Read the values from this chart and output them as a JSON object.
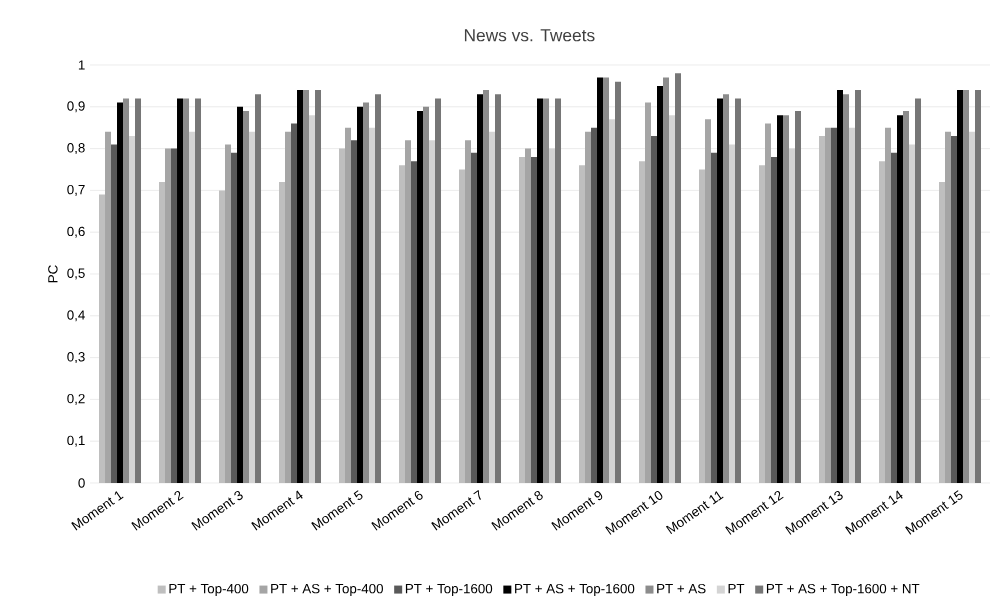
{
  "chart_data": {
    "type": "bar",
    "title": "News vs. Tweets",
    "ylabel": "PC",
    "categories": [
      "Moment 1",
      "Moment 2",
      "Moment 3",
      "Moment 4",
      "Moment 5",
      "Moment 6",
      "Moment 7",
      "Moment 8",
      "Moment 9",
      "Moment 10",
      "Moment 11",
      "Moment 12",
      "Moment 13",
      "Moment 14",
      "Moment 15"
    ],
    "series": [
      {
        "name": "PT + Top-400",
        "color": "#bfbfbf",
        "values": [
          0.69,
          0.72,
          0.7,
          0.72,
          0.8,
          0.76,
          0.75,
          0.78,
          0.76,
          0.77,
          0.75,
          0.76,
          0.83,
          0.77,
          0.72
        ]
      },
      {
        "name": "PT + AS + Top-400",
        "color": "#a5a5a5",
        "values": [
          0.84,
          0.8,
          0.81,
          0.84,
          0.85,
          0.82,
          0.82,
          0.8,
          0.84,
          0.91,
          0.87,
          0.86,
          0.85,
          0.85,
          0.84
        ]
      },
      {
        "name": "PT + Top-1600",
        "color": "#595959",
        "values": [
          0.81,
          0.8,
          0.79,
          0.86,
          0.82,
          0.77,
          0.79,
          0.78,
          0.85,
          0.83,
          0.79,
          0.78,
          0.85,
          0.79,
          0.83
        ]
      },
      {
        "name": "PT + AS + Top-1600",
        "color": "#000000",
        "values": [
          0.91,
          0.92,
          0.9,
          0.94,
          0.9,
          0.89,
          0.93,
          0.92,
          0.97,
          0.95,
          0.92,
          0.88,
          0.94,
          0.88,
          0.94
        ]
      },
      {
        "name": "PT + AS",
        "color": "#8c8c8c",
        "values": [
          0.92,
          0.92,
          0.89,
          0.94,
          0.91,
          0.9,
          0.94,
          0.92,
          0.97,
          0.97,
          0.93,
          0.88,
          0.93,
          0.89,
          0.94
        ]
      },
      {
        "name": "PT",
        "color": "#d4d4d4",
        "values": [
          0.83,
          0.84,
          0.84,
          0.88,
          0.85,
          0.82,
          0.84,
          0.8,
          0.87,
          0.88,
          0.81,
          0.8,
          0.85,
          0.81,
          0.84
        ]
      },
      {
        "name": "PT + AS + Top-1600 + NT",
        "color": "#767676",
        "values": [
          0.92,
          0.92,
          0.93,
          0.94,
          0.93,
          0.92,
          0.93,
          0.92,
          0.96,
          0.98,
          0.92,
          0.89,
          0.94,
          0.92,
          0.94
        ]
      }
    ],
    "ylim": [
      0,
      1
    ],
    "yticks": [
      {
        "value": 0,
        "label": "0"
      },
      {
        "value": 0.1,
        "label": "0,1"
      },
      {
        "value": 0.2,
        "label": "0,2"
      },
      {
        "value": 0.3,
        "label": "0,3"
      },
      {
        "value": 0.4,
        "label": "0,4"
      },
      {
        "value": 0.5,
        "label": "0,5"
      },
      {
        "value": 0.6,
        "label": "0,6"
      },
      {
        "value": 0.7,
        "label": "0,7"
      },
      {
        "value": 0.8,
        "label": "0,8"
      },
      {
        "value": 0.9,
        "label": "0,9"
      },
      {
        "value": 1,
        "label": "1"
      }
    ],
    "grid": "y",
    "legend": "bottom"
  }
}
